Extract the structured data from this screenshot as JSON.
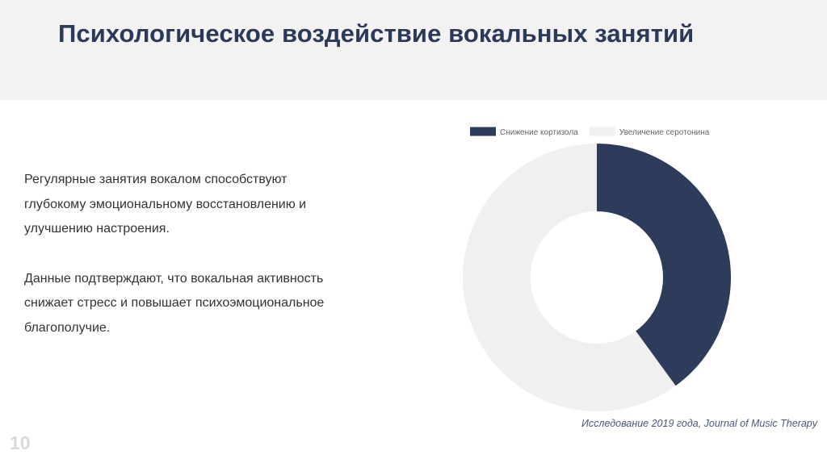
{
  "header": {
    "title": "Психологическое воздействие вокальных занятий"
  },
  "body_text": {
    "paragraph_1": "Регулярные занятия вокалом способствуют глубокому эмоциональному восстановлению и улучшению настроения.",
    "paragraph_2": "Данные подтверждают, что вокальная активность снижает стресс и повышает психоэмоциональное благополучие."
  },
  "source": "Исследование 2019 года, Journal of Music Therapy",
  "page_number": "10",
  "chart_data": {
    "type": "pie",
    "variant": "doughnut",
    "categories": [
      "Снижение кортизола",
      "Увеличение серотонина"
    ],
    "values": [
      40,
      60
    ],
    "colors": [
      "#2d3c5a",
      "#f0f0f0"
    ],
    "legend_position": "top"
  }
}
